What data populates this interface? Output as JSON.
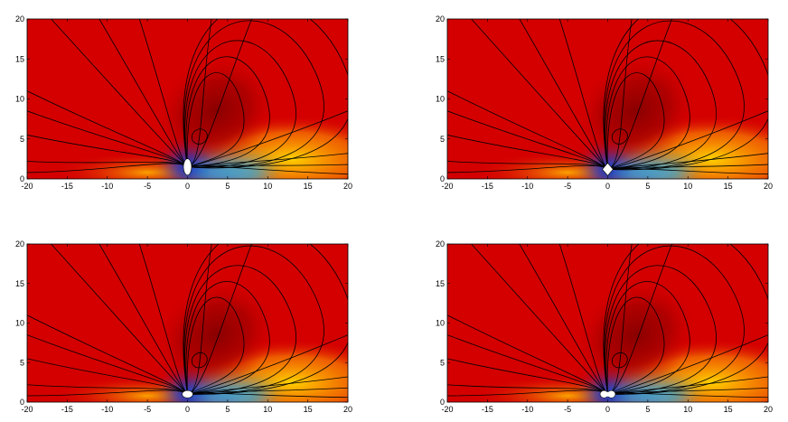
{
  "chart_data": [
    {
      "type": "heatmap",
      "panel": "top-left",
      "xlim": [
        -20,
        20
      ],
      "ylim": [
        0,
        20
      ],
      "xticks": [
        -20,
        -15,
        -10,
        -5,
        0,
        5,
        10,
        15,
        20
      ],
      "yticks": [
        0,
        5,
        10,
        15,
        20
      ],
      "xtick_labels": [
        "-20",
        "-15",
        "-10",
        "-5",
        "0",
        "5",
        "10",
        "15",
        "20"
      ],
      "ytick_labels": [
        "0",
        "5",
        "10",
        "15",
        "20"
      ],
      "obstacle": "vertical-ellipse",
      "obstacle_center": [
        0,
        1.5
      ],
      "grid": false,
      "title": "",
      "xlabel": "",
      "ylabel": ""
    },
    {
      "type": "heatmap",
      "panel": "top-right",
      "xlim": [
        -20,
        20
      ],
      "ylim": [
        0,
        20
      ],
      "xticks": [
        -20,
        -15,
        -10,
        -5,
        0,
        5,
        10,
        15,
        20
      ],
      "yticks": [
        0,
        5,
        10,
        15,
        20
      ],
      "xtick_labels": [
        "-20",
        "-15",
        "-10",
        "-5",
        "0",
        "5",
        "10",
        "15",
        "20"
      ],
      "ytick_labels": [
        "0",
        "5",
        "10",
        "15",
        "20"
      ],
      "obstacle": "diamond",
      "obstacle_center": [
        0,
        1.2
      ],
      "grid": false,
      "title": "",
      "xlabel": "",
      "ylabel": ""
    },
    {
      "type": "heatmap",
      "panel": "bottom-left",
      "xlim": [
        -20,
        20
      ],
      "ylim": [
        0,
        20
      ],
      "xticks": [
        -20,
        -15,
        -10,
        -5,
        0,
        5,
        10,
        15,
        20
      ],
      "yticks": [
        0,
        5,
        10,
        15,
        20
      ],
      "xtick_labels": [
        "-20",
        "-15",
        "-10",
        "-5",
        "0",
        "5",
        "10",
        "15",
        "20"
      ],
      "ytick_labels": [
        "0",
        "5",
        "10",
        "15",
        "20"
      ],
      "obstacle": "horizontal-ellipse",
      "obstacle_center": [
        0,
        1.0
      ],
      "grid": false,
      "title": "",
      "xlabel": "",
      "ylabel": ""
    },
    {
      "type": "heatmap",
      "panel": "bottom-right",
      "xlim": [
        -20,
        20
      ],
      "ylim": [
        0,
        20
      ],
      "xticks": [
        -20,
        -15,
        -10,
        -5,
        0,
        5,
        10,
        15,
        20
      ],
      "yticks": [
        0,
        5,
        10,
        15,
        20
      ],
      "xtick_labels": [
        "-20",
        "-15",
        "-10",
        "-5",
        "0",
        "5",
        "10",
        "15",
        "20"
      ],
      "ytick_labels": [
        "0",
        "5",
        "10",
        "15",
        "20"
      ],
      "obstacle": "peanut",
      "obstacle_center": [
        0,
        1.0
      ],
      "grid": false,
      "title": "",
      "xlabel": "",
      "ylabel": ""
    }
  ],
  "colors": {
    "field_high": "#d40000",
    "field_core": "#8a0000",
    "field_mid": "#ffd200",
    "field_low": "#19b4ff",
    "field_min": "#0000b0",
    "streamline": "#000000",
    "obstacle": "#ffffff"
  }
}
